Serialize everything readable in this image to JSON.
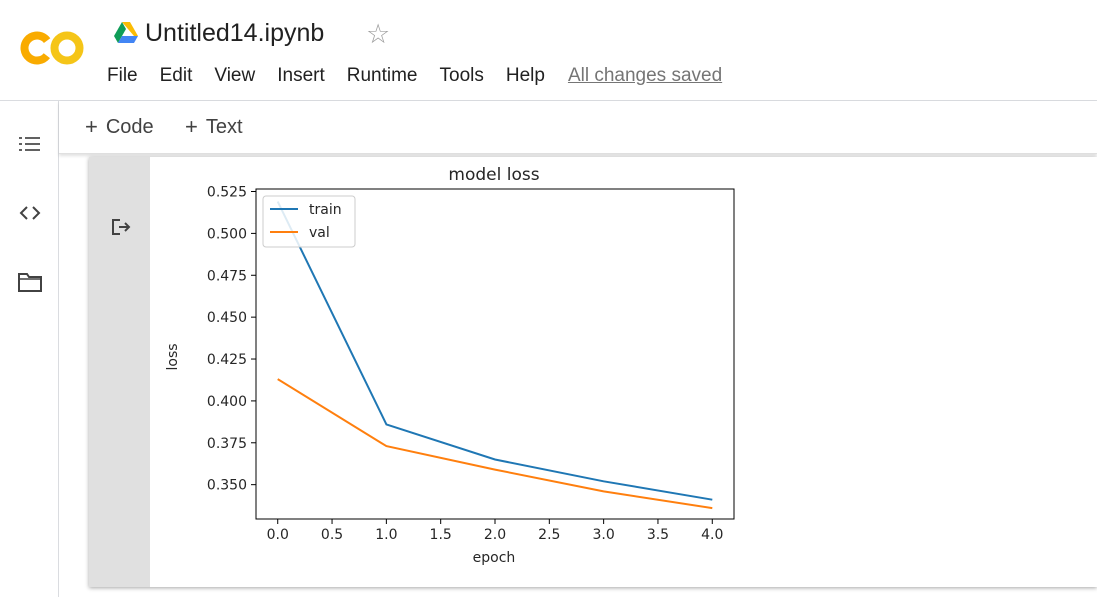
{
  "app": {
    "logo_text": "CO",
    "notebook_title": "Untitled14.ipynb",
    "save_status": "All changes saved"
  },
  "menu": [
    "File",
    "Edit",
    "View",
    "Insert",
    "Runtime",
    "Tools",
    "Help"
  ],
  "toolbar": {
    "code_label": "Code",
    "text_label": "Text",
    "plus_glyph": "+"
  },
  "sidebar": {
    "icons": [
      "table-of-contents-icon",
      "code-snippets-icon",
      "files-icon"
    ]
  },
  "cell": {
    "output_icon": "output-icon"
  },
  "colors": {
    "logo_orange": "#f9ab00",
    "logo_yellow": "#f5c518",
    "train": "#1f77b4",
    "val": "#ff7f0e",
    "gutter": "#e0e0e0"
  },
  "chart_data": {
    "type": "line",
    "title": "model loss",
    "xlabel": "epoch",
    "ylabel": "loss",
    "x": [
      0,
      1,
      2,
      3,
      4
    ],
    "series": [
      {
        "name": "train",
        "color": "#1f77b4",
        "values": [
          0.519,
          0.386,
          0.365,
          0.352,
          0.341
        ]
      },
      {
        "name": "val",
        "color": "#ff7f0e",
        "values": [
          0.413,
          0.373,
          0.359,
          0.346,
          0.336
        ]
      }
    ],
    "xlim": [
      -0.2,
      4.2
    ],
    "ylim": [
      0.3295,
      0.5265
    ],
    "xticks": [
      "0.0",
      "0.5",
      "1.0",
      "1.5",
      "2.0",
      "2.5",
      "3.0",
      "3.5",
      "4.0"
    ],
    "yticks": [
      "0.350",
      "0.375",
      "0.400",
      "0.425",
      "0.450",
      "0.475",
      "0.500",
      "0.525"
    ],
    "grid": false,
    "legend_position": "upper left"
  }
}
